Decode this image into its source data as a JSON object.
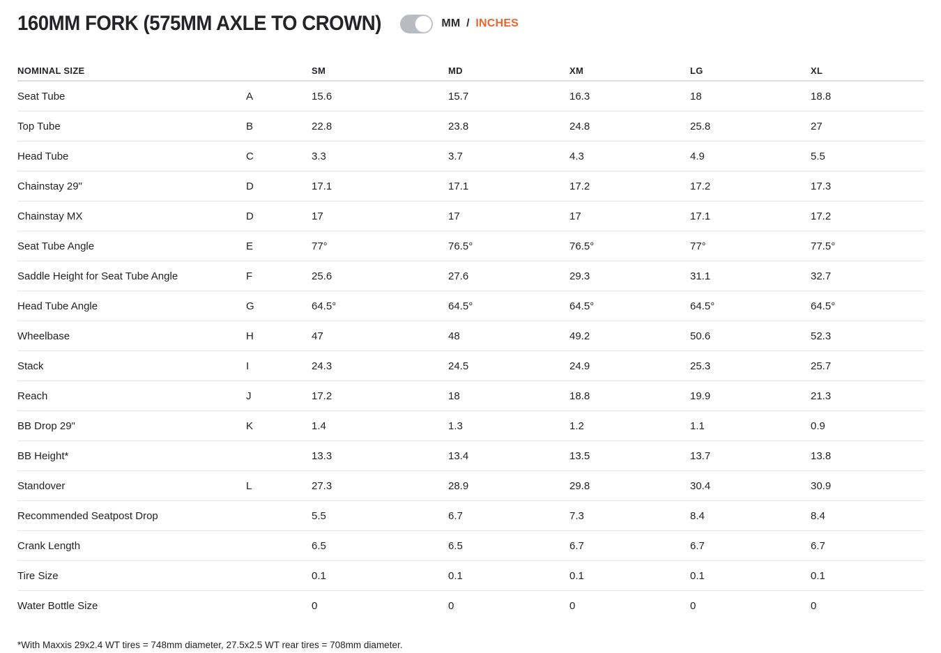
{
  "header": {
    "title": "160MM FORK (575MM AXLE TO CROWN)",
    "unit_toggle": {
      "mm_label": "MM",
      "separator": "/",
      "inches_label": "INCHES",
      "selected_unit": "INCHES"
    }
  },
  "colors": {
    "accent_orange": "#ED652A",
    "toggle_gray": "#B6BCC1",
    "text_dark": "#232428",
    "row_divider": "#E5E6E7"
  },
  "table": {
    "columns": [
      "NOMINAL SIZE",
      "",
      "SM",
      "MD",
      "XM",
      "LG",
      "XL"
    ],
    "rows": [
      {
        "label": "Seat Tube",
        "letter": "A",
        "values": [
          "15.6",
          "15.7",
          "16.3",
          "18",
          "18.8"
        ]
      },
      {
        "label": "Top Tube",
        "letter": "B",
        "values": [
          "22.8",
          "23.8",
          "24.8",
          "25.8",
          "27"
        ]
      },
      {
        "label": "Head Tube",
        "letter": "C",
        "values": [
          "3.3",
          "3.7",
          "4.3",
          "4.9",
          "5.5"
        ]
      },
      {
        "label": "Chainstay 29\"",
        "letter": "D",
        "values": [
          "17.1",
          "17.1",
          "17.2",
          "17.2",
          "17.3"
        ]
      },
      {
        "label": "Chainstay MX",
        "letter": "D",
        "values": [
          "17",
          "17",
          "17",
          "17.1",
          "17.2"
        ]
      },
      {
        "label": "Seat Tube Angle",
        "letter": "E",
        "values": [
          "77°",
          "76.5°",
          "76.5°",
          "77°",
          "77.5°"
        ]
      },
      {
        "label": "Saddle Height for Seat Tube Angle",
        "letter": "F",
        "values": [
          "25.6",
          "27.6",
          "29.3",
          "31.1",
          "32.7"
        ]
      },
      {
        "label": "Head Tube Angle",
        "letter": "G",
        "values": [
          "64.5°",
          "64.5°",
          "64.5°",
          "64.5°",
          "64.5°"
        ]
      },
      {
        "label": "Wheelbase",
        "letter": "H",
        "values": [
          "47",
          "48",
          "49.2",
          "50.6",
          "52.3"
        ]
      },
      {
        "label": "Stack",
        "letter": "I",
        "values": [
          "24.3",
          "24.5",
          "24.9",
          "25.3",
          "25.7"
        ]
      },
      {
        "label": "Reach",
        "letter": "J",
        "values": [
          "17.2",
          "18",
          "18.8",
          "19.9",
          "21.3"
        ]
      },
      {
        "label": "BB Drop 29\"",
        "letter": "K",
        "values": [
          "1.4",
          "1.3",
          "1.2",
          "1.1",
          "0.9"
        ]
      },
      {
        "label": "BB Height*",
        "letter": "",
        "values": [
          "13.3",
          "13.4",
          "13.5",
          "13.7",
          "13.8"
        ]
      },
      {
        "label": "Standover",
        "letter": "L",
        "values": [
          "27.3",
          "28.9",
          "29.8",
          "30.4",
          "30.9"
        ]
      },
      {
        "label": "Recommended Seatpost Drop",
        "letter": "",
        "values": [
          "5.5",
          "6.7",
          "7.3",
          "8.4",
          "8.4"
        ]
      },
      {
        "label": "Crank Length",
        "letter": "",
        "values": [
          "6.5",
          "6.5",
          "6.7",
          "6.7",
          "6.7"
        ]
      },
      {
        "label": "Tire Size",
        "letter": "",
        "values": [
          "0.1",
          "0.1",
          "0.1",
          "0.1",
          "0.1"
        ]
      },
      {
        "label": "Water Bottle Size",
        "letter": "",
        "values": [
          "0",
          "0",
          "0",
          "0",
          "0"
        ]
      }
    ]
  },
  "footnote": "*With Maxxis 29x2.4 WT tires = 748mm diameter, 27.5x2.5 WT rear tires = 708mm diameter."
}
